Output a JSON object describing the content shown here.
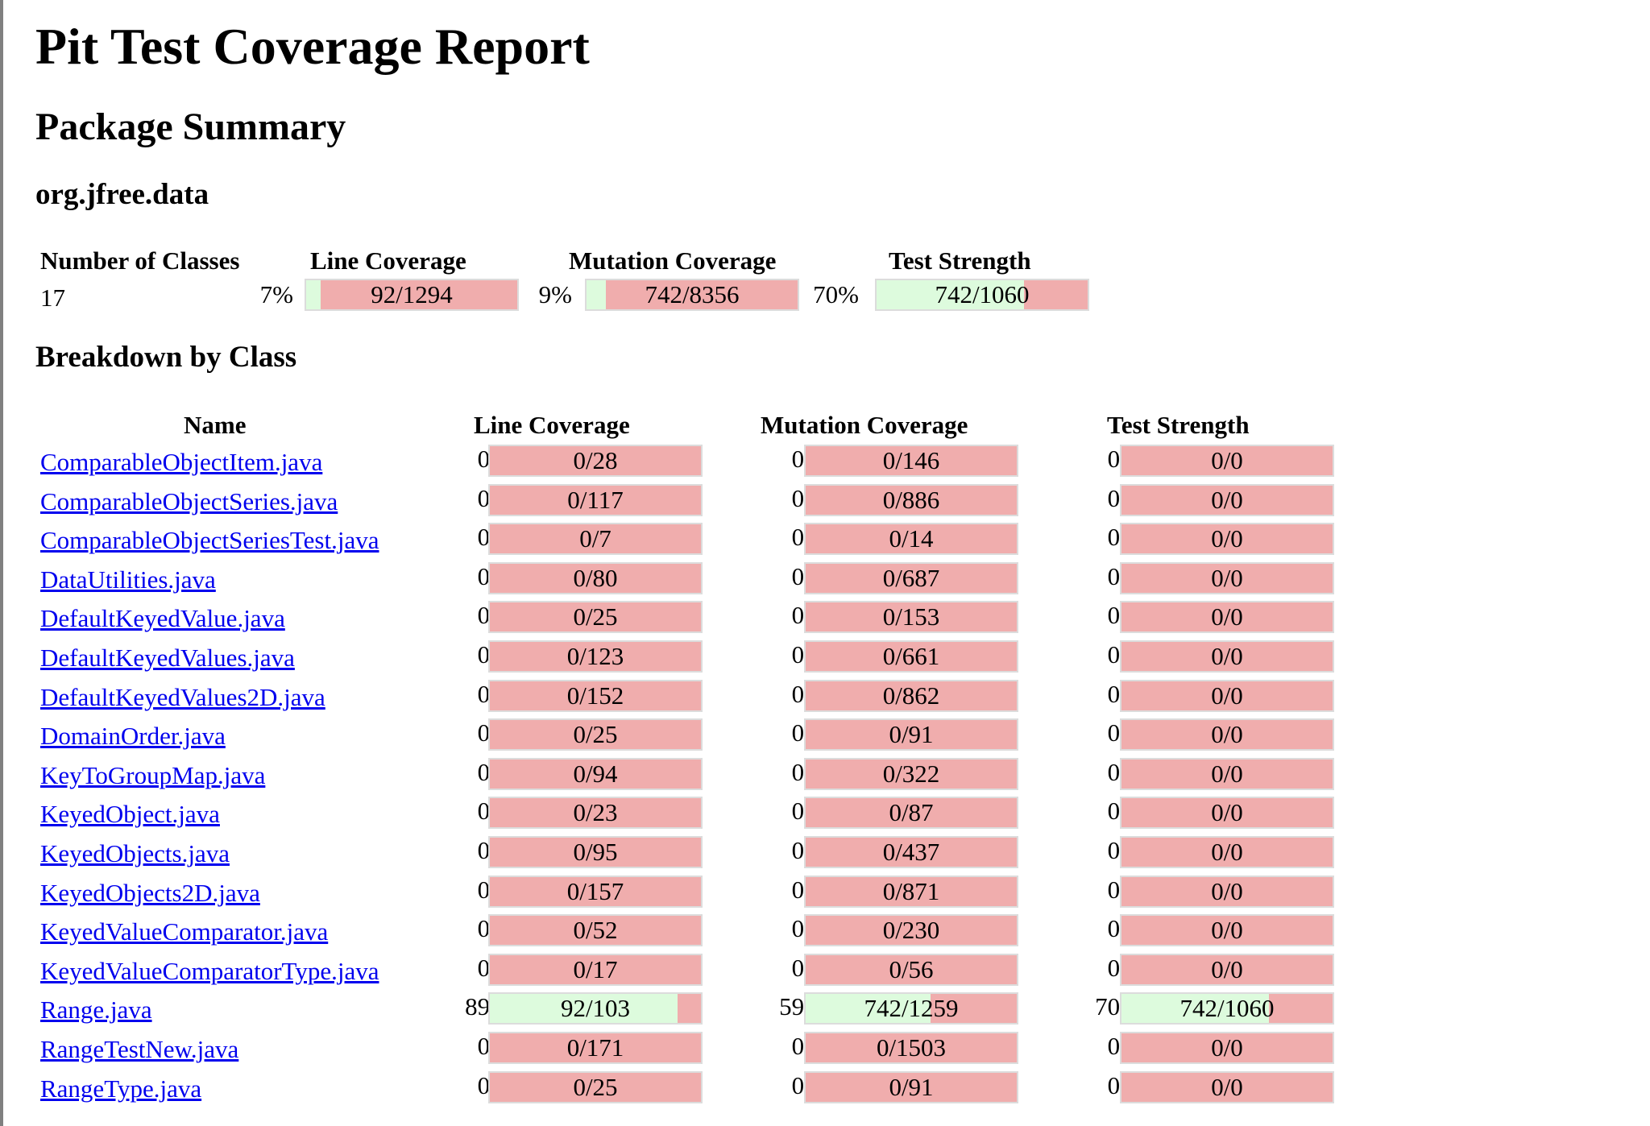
{
  "title": "Pit Test Coverage Report",
  "section_title": "Package Summary",
  "package_name": "org.jfree.data",
  "summary": {
    "headers": {
      "classes": "Number of Classes",
      "line": "Line Coverage",
      "mutation": "Mutation Coverage",
      "strength": "Test Strength"
    },
    "num_classes": "17",
    "line": {
      "pct": "7%",
      "frac": "92/1294"
    },
    "mutation": {
      "pct": "9%",
      "frac": "742/8356"
    },
    "strength": {
      "pct": "70%",
      "frac": "742/1060"
    }
  },
  "breakdown_title": "Breakdown by Class",
  "breakdown_headers": {
    "name": "Name",
    "line": "Line Coverage",
    "mutation": "Mutation Coverage",
    "strength": "Test Strength"
  },
  "classes": [
    {
      "name": "ComparableObjectItem.java",
      "line_pct": "0%",
      "line": "0/28",
      "mut_pct": "0%",
      "mut": "0/146",
      "str_pct": "0%",
      "str": "0/0"
    },
    {
      "name": "ComparableObjectSeries.java",
      "line_pct": "0%",
      "line": "0/117",
      "mut_pct": "0%",
      "mut": "0/886",
      "str_pct": "0%",
      "str": "0/0"
    },
    {
      "name": "ComparableObjectSeriesTest.java",
      "line_pct": "0%",
      "line": "0/7",
      "mut_pct": "0%",
      "mut": "0/14",
      "str_pct": "0%",
      "str": "0/0"
    },
    {
      "name": "DataUtilities.java",
      "line_pct": "0%",
      "line": "0/80",
      "mut_pct": "0%",
      "mut": "0/687",
      "str_pct": "0%",
      "str": "0/0"
    },
    {
      "name": "DefaultKeyedValue.java",
      "line_pct": "0%",
      "line": "0/25",
      "mut_pct": "0%",
      "mut": "0/153",
      "str_pct": "0%",
      "str": "0/0"
    },
    {
      "name": "DefaultKeyedValues.java",
      "line_pct": "0%",
      "line": "0/123",
      "mut_pct": "0%",
      "mut": "0/661",
      "str_pct": "0%",
      "str": "0/0"
    },
    {
      "name": "DefaultKeyedValues2D.java",
      "line_pct": "0%",
      "line": "0/152",
      "mut_pct": "0%",
      "mut": "0/862",
      "str_pct": "0%",
      "str": "0/0"
    },
    {
      "name": "DomainOrder.java",
      "line_pct": "0%",
      "line": "0/25",
      "mut_pct": "0%",
      "mut": "0/91",
      "str_pct": "0%",
      "str": "0/0"
    },
    {
      "name": "KeyToGroupMap.java",
      "line_pct": "0%",
      "line": "0/94",
      "mut_pct": "0%",
      "mut": "0/322",
      "str_pct": "0%",
      "str": "0/0"
    },
    {
      "name": "KeyedObject.java",
      "line_pct": "0%",
      "line": "0/23",
      "mut_pct": "0%",
      "mut": "0/87",
      "str_pct": "0%",
      "str": "0/0"
    },
    {
      "name": "KeyedObjects.java",
      "line_pct": "0%",
      "line": "0/95",
      "mut_pct": "0%",
      "mut": "0/437",
      "str_pct": "0%",
      "str": "0/0"
    },
    {
      "name": "KeyedObjects2D.java",
      "line_pct": "0%",
      "line": "0/157",
      "mut_pct": "0%",
      "mut": "0/871",
      "str_pct": "0%",
      "str": "0/0"
    },
    {
      "name": "KeyedValueComparator.java",
      "line_pct": "0%",
      "line": "0/52",
      "mut_pct": "0%",
      "mut": "0/230",
      "str_pct": "0%",
      "str": "0/0"
    },
    {
      "name": "KeyedValueComparatorType.java",
      "line_pct": "0%",
      "line": "0/17",
      "mut_pct": "0%",
      "mut": "0/56",
      "str_pct": "0%",
      "str": "0/0"
    },
    {
      "name": "Range.java",
      "line_pct": "89%",
      "line": "92/103",
      "mut_pct": "59%",
      "mut": "742/1259",
      "str_pct": "70%",
      "str": "742/1060"
    },
    {
      "name": "RangeTestNew.java",
      "line_pct": "0%",
      "line": "0/171",
      "mut_pct": "0%",
      "mut": "0/1503",
      "str_pct": "0%",
      "str": "0/0"
    },
    {
      "name": "RangeType.java",
      "line_pct": "0%",
      "line": "0/25",
      "mut_pct": "0%",
      "mut": "0/91",
      "str_pct": "0%",
      "str": "0/0"
    }
  ],
  "colors": {
    "covered": "#ddfbdd",
    "uncovered": "#f0adad",
    "link": "#0000ee"
  }
}
